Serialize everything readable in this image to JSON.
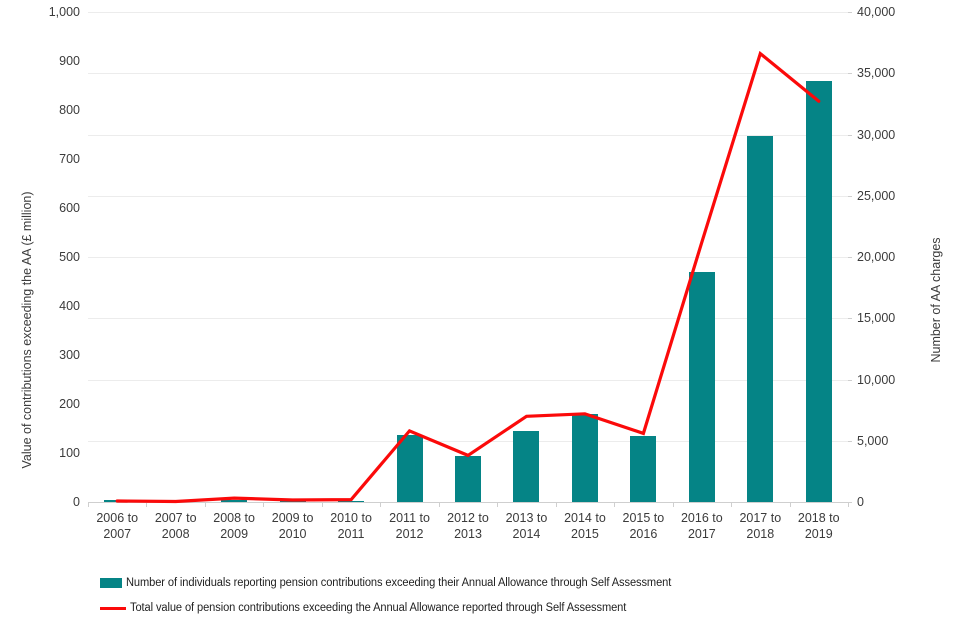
{
  "chart_data": {
    "type": "bar+line combo",
    "title": "",
    "categories": [
      "2006 to 2007",
      "2007 to 2008",
      "2008 to 2009",
      "2009 to 2010",
      "2010 to 2011",
      "2011 to 2012",
      "2012 to 2013",
      "2013 to 2014",
      "2014 to 2015",
      "2015 to 2016",
      "2016 to 2017",
      "2017 to 2018",
      "2018 to 2019"
    ],
    "series": [
      {
        "name": "Number of individuals reporting pension contributions exceeding their Annual Allowance through Self Assessment",
        "type": "bar",
        "axis": "right",
        "color": "#058486",
        "values": [
          150,
          30,
          200,
          100,
          100,
          5500,
          3750,
          5800,
          7200,
          5400,
          18800,
          29900,
          34350
        ]
      },
      {
        "name": "Total value of pension contributions exceeding the Annual Allowance reported through Self Assessment",
        "type": "line",
        "axis": "left",
        "color": "#fb0a0a",
        "values": [
          2,
          1,
          8,
          4,
          5,
          145,
          95,
          175,
          180,
          140,
          530,
          915,
          818
        ]
      }
    ],
    "left_axis": {
      "label": "Value of contributions exceeding the AA (£ million)",
      "min": 0,
      "max": 1000,
      "step": 100
    },
    "right_axis": {
      "label": "Number of AA charges",
      "min": 0,
      "max": 40000,
      "step": 5000
    },
    "gridlines": "horizontal, aligned to right axis major units",
    "legend_position": "bottom-left"
  }
}
